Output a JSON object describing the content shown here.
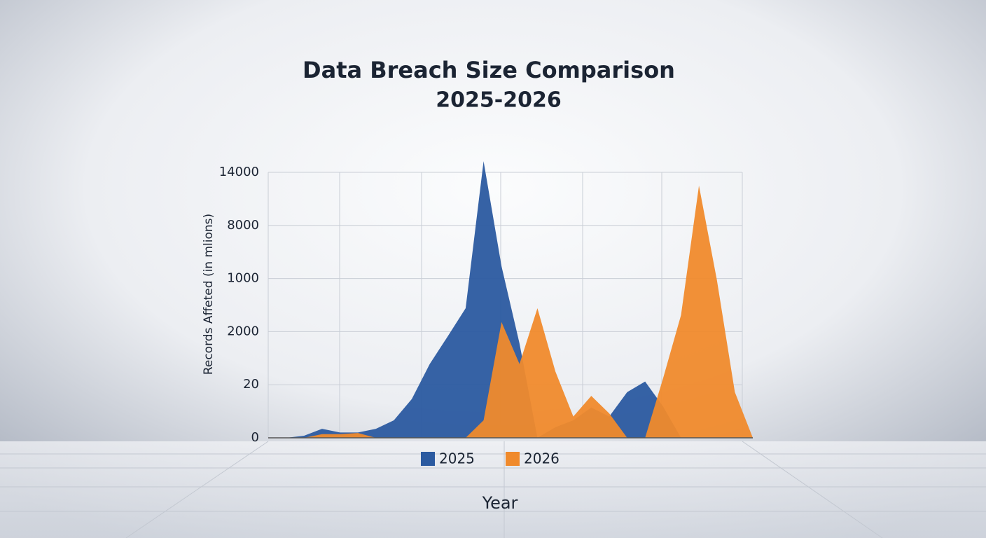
{
  "chart_data": {
    "type": "area",
    "title": "Data Breach Size Comparison",
    "subtitle": "2025-2026",
    "y_label": "Records Affeted (in mlions)",
    "x_label": "Year",
    "ylim": [
      0,
      5
    ],
    "yticks": [
      {
        "value": 0,
        "label": "0"
      },
      {
        "value": 1,
        "label": "20"
      },
      {
        "value": 2,
        "label": "2000"
      },
      {
        "value": 3,
        "label": "1000"
      },
      {
        "value": 4,
        "label": "8000"
      },
      {
        "value": 5,
        "label": "14000"
      }
    ],
    "grid": true,
    "series": [
      {
        "name": "2025",
        "color": "#2b5aa0",
        "values": [
          0,
          0,
          0.04,
          0.17,
          0.1,
          0.1,
          0.17,
          0.33,
          0.73,
          1.39,
          1.91,
          2.44,
          5.21,
          3.23,
          1.78,
          0,
          0.2,
          0.33,
          0.57,
          0.4,
          0.86,
          1.06,
          0.59,
          0,
          0,
          0,
          0,
          0
        ]
      },
      {
        "name": "2026",
        "color": "#f08a2c",
        "values": [
          0,
          0,
          0,
          0.07,
          0.07,
          0.09,
          0,
          0,
          0,
          0,
          0,
          0,
          0.33,
          2.18,
          1.39,
          2.44,
          1.25,
          0.4,
          0.79,
          0.46,
          0,
          0,
          1.12,
          2.31,
          4.75,
          2.97,
          0.86,
          0
        ]
      }
    ]
  }
}
